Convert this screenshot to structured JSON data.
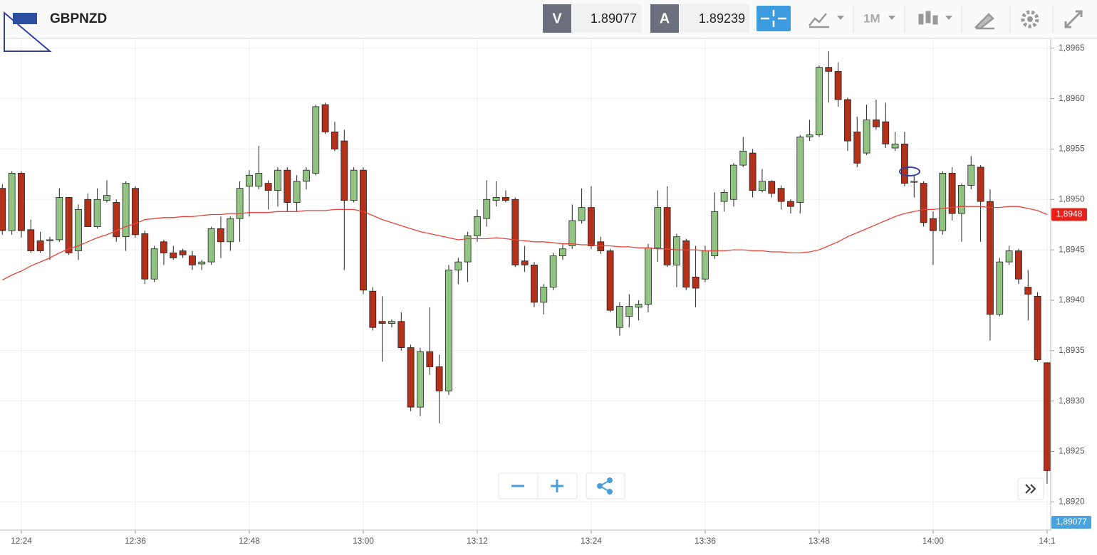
{
  "header": {
    "symbol": "GBPNZD",
    "bid_letter": "V",
    "bid": "1.89077",
    "ask_letter": "A",
    "ask": "1.89239",
    "timeframe": "1M"
  },
  "chart_data": {
    "type": "candlestick",
    "categories": [
      null,
      null,
      "12:24",
      null,
      null,
      null,
      null,
      null,
      null,
      null,
      null,
      null,
      null,
      null,
      "12:36",
      null,
      null,
      null,
      null,
      null,
      null,
      null,
      null,
      null,
      null,
      null,
      "12:48",
      null,
      null,
      null,
      null,
      null,
      null,
      null,
      null,
      null,
      null,
      null,
      "13:00",
      null,
      null,
      null,
      null,
      null,
      null,
      null,
      null,
      null,
      null,
      null,
      "13:12",
      null,
      null,
      null,
      null,
      null,
      null,
      null,
      null,
      null,
      null,
      null,
      "13:24",
      null,
      null,
      null,
      null,
      null,
      null,
      null,
      null,
      null,
      null,
      null,
      "13:36",
      null,
      null,
      null,
      null,
      null,
      null,
      null,
      null,
      null,
      null,
      null,
      "13:48",
      null,
      null,
      null,
      null,
      null,
      null,
      null,
      null,
      null,
      null,
      null,
      "14:00",
      null,
      null,
      null,
      null,
      null,
      null,
      null,
      null,
      null,
      null,
      null,
      "14:1"
    ],
    "open": [
      1.89511,
      1.89469,
      1.89526,
      1.8947,
      1.89459,
      1.89459,
      1.8946,
      1.89502,
      1.89449,
      1.895,
      1.89473,
      1.89499,
      1.89497,
      1.89463,
      1.89511,
      1.89466,
      1.89421,
      1.89458,
      1.89447,
      1.89449,
      1.89444,
      1.89436,
      1.89438,
      1.89471,
      1.89458,
      1.89481,
      1.89513,
      1.89513,
      1.89516,
      1.89509,
      1.89529,
      1.89497,
      1.89518,
      1.89526,
      1.89594,
      1.89567,
      1.89558,
      1.89499,
      1.89529,
      1.89409,
      1.89379,
      1.89377,
      1.89379,
      1.89353,
      1.89294,
      1.89349,
      1.89334,
      1.8931,
      1.8943,
      1.89438,
      1.89464,
      1.89481,
      1.89499,
      1.89502,
      1.895,
      1.89439,
      1.89435,
      1.89398,
      1.89413,
      1.89444,
      1.89454,
      1.89479,
      1.89492,
      1.89458,
      1.89449,
      1.89373,
      1.89384,
      1.89393,
      1.89396,
      1.89452,
      1.89492,
      1.89435,
      1.89459,
      1.89423,
      1.89421,
      1.89444,
      1.89498,
      1.895,
      1.89534,
      1.89546,
      1.89509,
      1.89518,
      1.89511,
      1.89498,
      1.89497,
      1.89562,
      1.89564,
      1.89631,
      1.89627,
      1.89599,
      1.89567,
      1.89546,
      1.89579,
      1.89577,
      1.89551,
      1.89555,
      1.89517,
      1.89516,
      1.89481,
      1.89469,
      1.89526,
      1.89486,
      1.89514,
      1.89532,
      1.89498,
      1.89386,
      1.89438,
      1.89449,
      1.89413,
      1.89404,
      1.89338
    ],
    "high": [
      1.89515,
      1.89528,
      1.89528,
      1.8948,
      1.89468,
      1.89463,
      1.89511,
      1.89502,
      1.89495,
      1.89506,
      1.89511,
      1.89519,
      1.895,
      1.89518,
      1.89513,
      1.89469,
      1.89454,
      1.8946,
      1.89454,
      1.89451,
      1.89449,
      1.8944,
      1.89473,
      1.89483,
      1.89483,
      1.89518,
      1.89529,
      1.89553,
      1.89519,
      1.89532,
      1.89532,
      1.89524,
      1.89532,
      1.89594,
      1.89596,
      1.89577,
      1.89569,
      1.89532,
      1.89532,
      1.89413,
      1.89404,
      1.89381,
      1.89388,
      1.89356,
      1.89353,
      1.89393,
      1.89346,
      1.89435,
      1.89442,
      1.89468,
      1.8949,
      1.89519,
      1.89518,
      1.89509,
      1.89502,
      1.89454,
      1.89438,
      1.89416,
      1.89447,
      1.89456,
      1.89495,
      1.89511,
      1.89513,
      1.89463,
      1.89451,
      1.89398,
      1.89406,
      1.894,
      1.89456,
      1.89509,
      1.89513,
      1.89466,
      1.89461,
      1.89454,
      1.89454,
      1.89507,
      1.8951,
      1.89536,
      1.89562,
      1.8955,
      1.8953,
      1.89519,
      1.89514,
      1.895,
      1.89564,
      1.89579,
      1.89633,
      1.89647,
      1.89636,
      1.89601,
      1.89582,
      1.89594,
      1.89599,
      1.89596,
      1.89567,
      1.89567,
      1.89524,
      1.89518,
      1.89488,
      1.89528,
      1.89532,
      1.89516,
      1.89543,
      1.89534,
      1.8951,
      1.89442,
      1.89454,
      1.89451,
      1.8943,
      1.89408,
      1.89338
    ],
    "low": [
      1.89465,
      1.89465,
      1.89462,
      1.89447,
      1.89447,
      1.8944,
      1.89458,
      1.89445,
      1.8944,
      1.89473,
      1.89471,
      1.89497,
      1.89458,
      1.89449,
      1.89462,
      1.89416,
      1.89418,
      1.89435,
      1.8944,
      1.89442,
      1.8943,
      1.8943,
      1.89435,
      1.89442,
      1.89449,
      1.89458,
      1.89483,
      1.8951,
      1.8949,
      1.89493,
      1.89488,
      1.89488,
      1.8951,
      1.89524,
      1.89565,
      1.89548,
      1.8943,
      1.89497,
      1.89406,
      1.8937,
      1.89339,
      1.89373,
      1.8935,
      1.8929,
      1.89285,
      1.89326,
      1.89278,
      1.89306,
      1.89416,
      1.89418,
      1.89458,
      1.89473,
      1.89493,
      1.89497,
      1.89433,
      1.89428,
      1.89393,
      1.89386,
      1.8941,
      1.8944,
      1.89451,
      1.89476,
      1.89451,
      1.89446,
      1.89388,
      1.89365,
      1.89373,
      1.8938,
      1.89388,
      1.89438,
      1.89433,
      1.89413,
      1.8941,
      1.89393,
      1.89418,
      1.89441,
      1.89488,
      1.89493,
      1.89532,
      1.89502,
      1.89507,
      1.89502,
      1.8949,
      1.89486,
      1.89486,
      1.89558,
      1.89562,
      1.89596,
      1.89592,
      1.89548,
      1.89532,
      1.89544,
      1.89569,
      1.89551,
      1.89548,
      1.89513,
      1.89502,
      1.89473,
      1.89435,
      1.89465,
      1.89479,
      1.89458,
      1.8951,
      1.89458,
      1.8936,
      1.89384,
      1.89435,
      1.89416,
      1.8938,
      1.89339,
      1.89218
    ],
    "close": [
      1.89469,
      1.89526,
      1.89469,
      1.89449,
      1.89449,
      1.8946,
      1.89502,
      1.89447,
      1.8949,
      1.89473,
      1.895,
      1.89504,
      1.89463,
      1.89516,
      1.89465,
      1.89421,
      1.89451,
      1.89447,
      1.89442,
      1.89445,
      1.89435,
      1.89438,
      1.89471,
      1.89458,
      1.89481,
      1.89511,
      1.89524,
      1.89526,
      1.89509,
      1.89529,
      1.89497,
      1.89518,
      1.89529,
      1.89592,
      1.89567,
      1.8955,
      1.89499,
      1.89529,
      1.8941,
      1.89373,
      1.89377,
      1.89379,
      1.89353,
      1.89294,
      1.89349,
      1.89334,
      1.8931,
      1.8943,
      1.89438,
      1.89464,
      1.89483,
      1.895,
      1.89502,
      1.89499,
      1.89435,
      1.89435,
      1.89398,
      1.89413,
      1.89444,
      1.89451,
      1.89479,
      1.89492,
      1.89454,
      1.89449,
      1.8939,
      1.89394,
      1.89394,
      1.89396,
      1.89452,
      1.89492,
      1.89435,
      1.89463,
      1.89413,
      1.89412,
      1.89449,
      1.89488,
      1.89507,
      1.89534,
      1.89548,
      1.89509,
      1.89518,
      1.89506,
      1.89498,
      1.89493,
      1.89562,
      1.89564,
      1.89631,
      1.89627,
      1.89599,
      1.89558,
      1.89536,
      1.89579,
      1.89572,
      1.89555,
      1.89555,
      1.89516,
      1.89518,
      1.89477,
      1.89469,
      1.89526,
      1.89486,
      1.89514,
      1.89534,
      1.89498,
      1.89386,
      1.89438,
      1.89449,
      1.89421,
      1.89406,
      1.89341,
      1.89231
    ],
    "up_color": "#91c483",
    "down_color": "#b3301a",
    "moving_average": {
      "color": "#e8433a",
      "last_label": "1,8948",
      "values": [
        1.8942,
        1.89425,
        1.89429,
        1.89434,
        1.89438,
        1.89442,
        1.89447,
        1.89451,
        1.89454,
        1.89458,
        1.89462,
        1.89465,
        1.89469,
        1.89473,
        1.89476,
        1.8948,
        1.89481,
        1.89482,
        1.89482,
        1.89483,
        1.89483,
        1.89484,
        1.89485,
        1.89485,
        1.89486,
        1.89486,
        1.89487,
        1.89487,
        1.89487,
        1.89488,
        1.89488,
        1.89488,
        1.89489,
        1.89489,
        1.89489,
        1.8949,
        1.8949,
        1.8949,
        1.89488,
        1.89484,
        1.8948,
        1.89477,
        1.89474,
        1.89471,
        1.89468,
        1.89466,
        1.89464,
        1.89462,
        1.8946,
        1.89461,
        1.89461,
        1.89461,
        1.89462,
        1.89461,
        1.8946,
        1.89459,
        1.89458,
        1.89458,
        1.89457,
        1.89456,
        1.89456,
        1.89455,
        1.89455,
        1.89454,
        1.89454,
        1.89453,
        1.89453,
        1.89452,
        1.89452,
        1.89451,
        1.89451,
        1.8945,
        1.8945,
        1.8945,
        1.89449,
        1.89449,
        1.89449,
        1.8945,
        1.8945,
        1.89449,
        1.89449,
        1.89448,
        1.89448,
        1.89447,
        1.89447,
        1.89448,
        1.8945,
        1.89454,
        1.89458,
        1.89463,
        1.89467,
        1.89471,
        1.89475,
        1.89479,
        1.89483,
        1.89486,
        1.89488,
        1.8949,
        1.8949,
        1.89491,
        1.89492,
        1.89493,
        1.89493,
        1.89493,
        1.89492,
        1.89492,
        1.89493,
        1.89493,
        1.89491,
        1.89489,
        1.89485
      ]
    },
    "bid_label": "1,89077",
    "ylim": [
      1.89172,
      1.89659
    ],
    "yticks": [
      {
        "value": 1.892,
        "label": "1,8920"
      },
      {
        "value": 1.8925,
        "label": "1,8925"
      },
      {
        "value": 1.893,
        "label": "1,8930"
      },
      {
        "value": 1.8935,
        "label": "1,8935"
      },
      {
        "value": 1.894,
        "label": "1,8940"
      },
      {
        "value": 1.8945,
        "label": "1,8945"
      },
      {
        "value": 1.895,
        "label": "1,8950"
      },
      {
        "value": 1.8955,
        "label": "1,8955"
      },
      {
        "value": 1.896,
        "label": "1,8960"
      },
      {
        "value": 1.8965,
        "label": "1,8965"
      }
    ],
    "grid": true
  }
}
